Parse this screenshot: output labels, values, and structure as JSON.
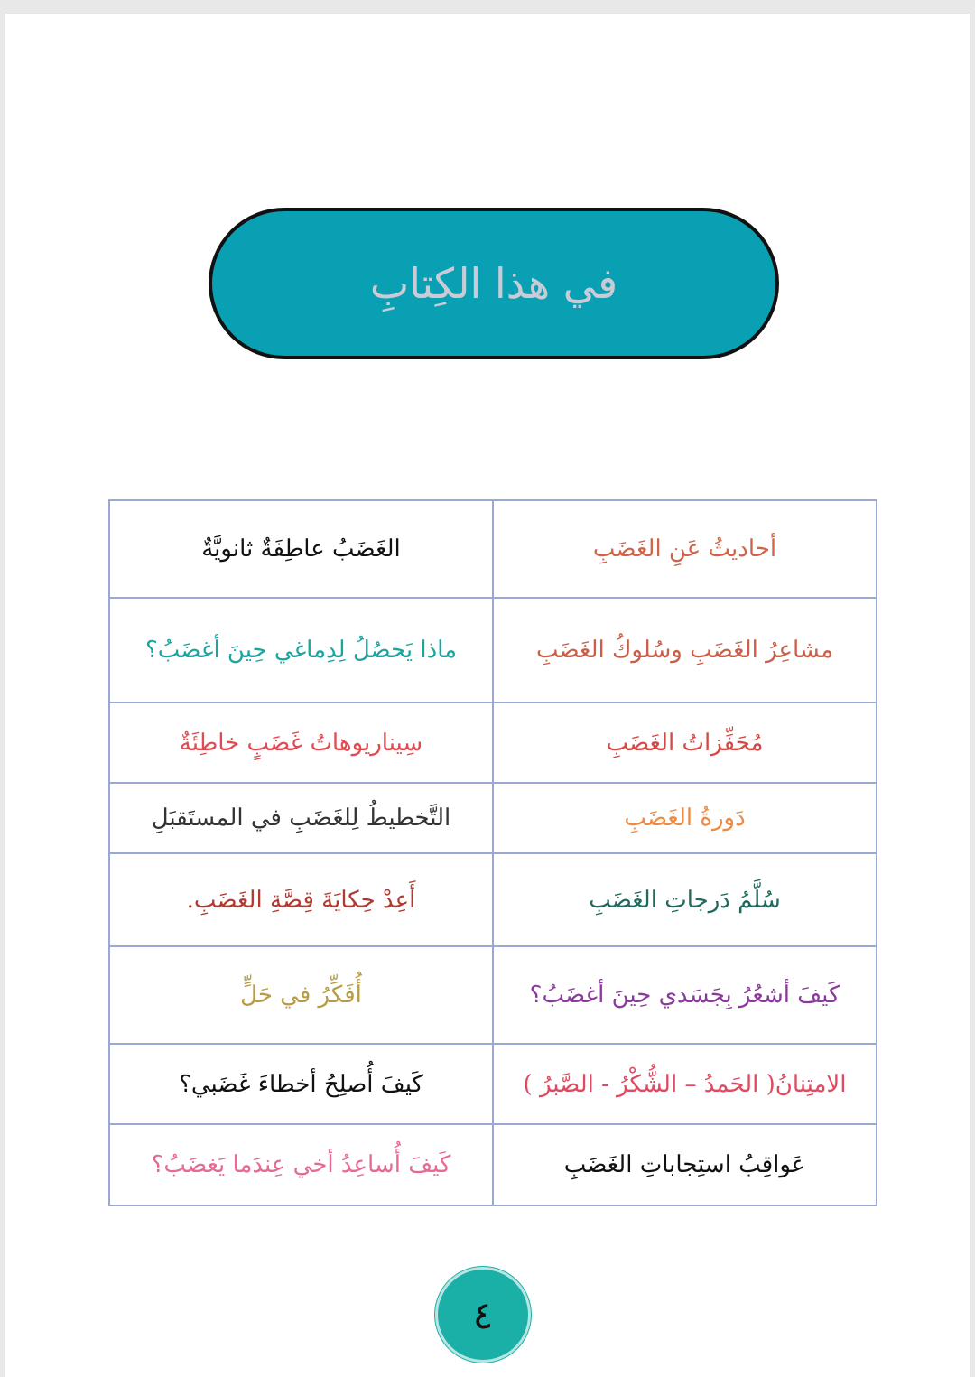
{
  "title": "في هذا الكِتابِ",
  "rows": [
    {
      "right": {
        "text": "أحاديثُ عَنِ الغَضَبِ",
        "color": "#cf6448"
      },
      "left": {
        "text": "الغَضَبُ عاطِفَةٌ ثانويَّةٌ",
        "color": "#111111"
      }
    },
    {
      "right": {
        "text": "مشاعِرُ الغَضَبِ وسُلوكُ الغَضَبِ",
        "color": "#cc5e48"
      },
      "left": {
        "text": "ماذا يَحصُلُ لِدِماغي حِينَ أغضَبُ؟",
        "color": "#1aa5a0"
      }
    },
    {
      "right": {
        "text": "مُحَفِّزاتُ الغَضَبِ",
        "color": "#d24a45"
      },
      "left": {
        "text": "سِيناريوهاتُ غَضَبٍ خاطِئَةٌ",
        "color": "#e04a50"
      }
    },
    {
      "right": {
        "text": "دَورةُ الغَضَبِ",
        "color": "#ee8a42"
      },
      "left": {
        "text": "التَّخطيطُ لِلغَضَبِ في المستَقبَلِ",
        "color": "#333333"
      }
    },
    {
      "right": {
        "text": "سُلَّمُ دَرجاتِ الغَضَبِ",
        "color": "#1f6a5e"
      },
      "left": {
        "text": "أَعِدْ حِكايَةَ قِصَّةِ الغَضَبِ.",
        "color": "#b03a30"
      }
    },
    {
      "right": {
        "text": "كَيفَ أشعُرُ بِجَسَدي حِينَ أغضَبُ؟",
        "color": "#8a3a9a"
      },
      "left": {
        "text": "أُفَكِّرُ في حَلٍّ",
        "color": "#b89c45"
      }
    },
    {
      "right": {
        "text": "الامتِنانُ( الحَمدُ – الشُّكْرُ - الصَّبرُ )",
        "color": "#e04a60"
      },
      "left": {
        "text": "كَيفَ أُصلِحُ أخطاءَ غَضَبي؟",
        "color": "#111111"
      }
    },
    {
      "right": {
        "text": "عَواقِبُ استِجاباتِ الغَضَبِ",
        "color": "#111111"
      },
      "left": {
        "text": "كَيفَ أُساعِدُ أخي عِندَما يَغضَبُ؟",
        "color": "#e66a92"
      }
    }
  ],
  "page_number": "٤",
  "colors": {
    "pill": "#0aa0b4",
    "border": "#9aa8d4",
    "page_circle": "#1ab0a8"
  }
}
